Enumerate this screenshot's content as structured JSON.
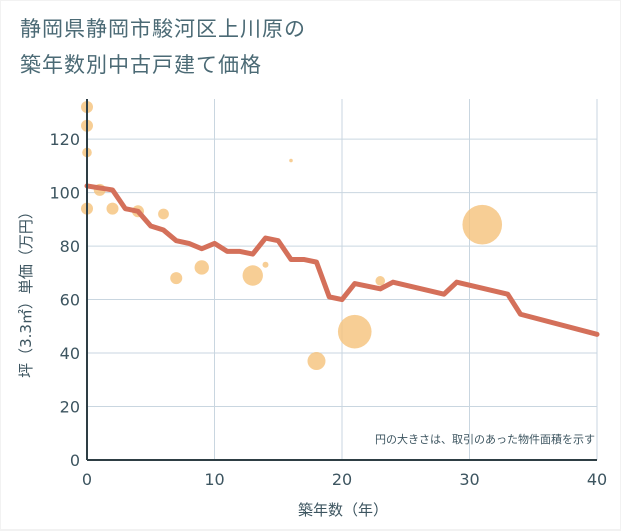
{
  "chart_data": {
    "type": "scatter+line",
    "title_lines": [
      "静岡県静岡市駿河区上川原の",
      "築年数別中古戸建て価格"
    ],
    "xlabel": "築年数（年）",
    "ylabel": "坪（3.3㎡）単価（万円）",
    "xlim": [
      0,
      40
    ],
    "ylim": [
      0,
      135
    ],
    "xticks": [
      0,
      10,
      20,
      30,
      40
    ],
    "yticks": [
      0,
      20,
      40,
      60,
      80,
      100,
      120
    ],
    "grid": true,
    "note": "円の大きさは、取引のあった物件面積を示す",
    "colors": {
      "bubble": "#f5c27a",
      "line": "#d4705a",
      "grid": "#c9d6e0",
      "axis": "#2e3e44"
    },
    "bubbles": [
      {
        "x": 0,
        "y": 132,
        "size": 1
      },
      {
        "x": 0,
        "y": 125,
        "size": 1
      },
      {
        "x": 0,
        "y": 115,
        "size": 0.8
      },
      {
        "x": 0,
        "y": 94,
        "size": 1
      },
      {
        "x": 1,
        "y": 101,
        "size": 1
      },
      {
        "x": 2,
        "y": 94,
        "size": 1
      },
      {
        "x": 4,
        "y": 93,
        "size": 1
      },
      {
        "x": 6,
        "y": 92,
        "size": 0.9
      },
      {
        "x": 7,
        "y": 68,
        "size": 1
      },
      {
        "x": 9,
        "y": 72,
        "size": 1.2
      },
      {
        "x": 13,
        "y": 69,
        "size": 1.7
      },
      {
        "x": 14,
        "y": 73,
        "size": 0.5
      },
      {
        "x": 16,
        "y": 112,
        "size": 0.3
      },
      {
        "x": 18,
        "y": 37,
        "size": 1.5
      },
      {
        "x": 21,
        "y": 48,
        "size": 2.8
      },
      {
        "x": 23,
        "y": 67,
        "size": 0.8
      },
      {
        "x": 31,
        "y": 88,
        "size": 3.3
      }
    ],
    "line": {
      "x": [
        0,
        2,
        3,
        4,
        5,
        6,
        7,
        8,
        9,
        10,
        11,
        12,
        13,
        14,
        15,
        16,
        17,
        18,
        19,
        20,
        21,
        22,
        23,
        24,
        28,
        29,
        33,
        34,
        40
      ],
      "y": [
        102.5,
        101,
        94,
        93,
        87.5,
        86,
        82,
        81,
        79,
        81,
        78,
        78,
        77,
        83,
        82,
        75,
        75,
        74,
        61,
        60,
        66,
        65,
        64,
        66.5,
        62,
        66.5,
        62,
        54.5,
        47
      ]
    }
  }
}
